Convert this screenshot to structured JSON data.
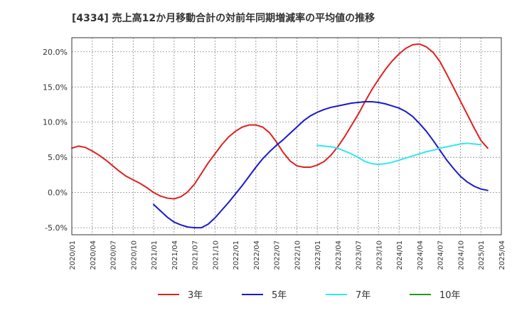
{
  "chart_data": {
    "type": "line",
    "title": "[4334]  売上高12か月移動合計の対前年同期増減率の平均値の推移",
    "xlabel": "",
    "ylabel": "",
    "ylim": [
      -6.0,
      22.0
    ],
    "y_ticks": [
      "-5.0%",
      "0.0%",
      "5.0%",
      "10.0%",
      "15.0%",
      "20.0%"
    ],
    "x_ticks": [
      "2020/01",
      "2020/04",
      "2020/07",
      "2020/10",
      "2021/01",
      "2021/04",
      "2021/07",
      "2021/10",
      "2022/01",
      "2022/04",
      "2022/07",
      "2022/10",
      "2023/01",
      "2023/04",
      "2023/07",
      "2023/10",
      "2024/01",
      "2024/04",
      "2024/07",
      "2024/10",
      "2025/01",
      "2025/04"
    ],
    "grid": true,
    "legend_position": "bottom",
    "series": [
      {
        "name": "3年",
        "color": "#dd2222",
        "start": "2020/01",
        "values": [
          6.3,
          6.6,
          6.4,
          5.9,
          5.3,
          4.6,
          3.8,
          3.0,
          2.3,
          1.8,
          1.3,
          0.7,
          0.0,
          -0.5,
          -0.8,
          -0.9,
          -0.6,
          0.1,
          1.2,
          2.7,
          4.2,
          5.5,
          6.8,
          7.9,
          8.7,
          9.3,
          9.6,
          9.6,
          9.3,
          8.5,
          7.2,
          5.7,
          4.5,
          3.8,
          3.6,
          3.6,
          3.9,
          4.4,
          5.3,
          6.5,
          7.9,
          9.5,
          11.1,
          12.9,
          14.6,
          16.1,
          17.5,
          18.7,
          19.7,
          20.5,
          21.0,
          21.1,
          20.7,
          19.9,
          18.6,
          16.8,
          14.9,
          13.0,
          11.1,
          9.2,
          7.4,
          6.3
        ]
      },
      {
        "name": "5年",
        "color": "#1a1acc",
        "start": "2021/01",
        "values": [
          -1.7,
          -2.6,
          -3.5,
          -4.2,
          -4.6,
          -4.9,
          -5.0,
          -5.0,
          -4.5,
          -3.6,
          -2.5,
          -1.4,
          -0.2,
          1.0,
          2.3,
          3.6,
          4.8,
          5.8,
          6.7,
          7.5,
          8.4,
          9.3,
          10.2,
          10.9,
          11.4,
          11.8,
          12.1,
          12.3,
          12.5,
          12.7,
          12.8,
          12.9,
          12.9,
          12.8,
          12.6,
          12.3,
          12.0,
          11.5,
          10.8,
          9.8,
          8.7,
          7.4,
          6.0,
          4.6,
          3.4,
          2.3,
          1.5,
          0.9,
          0.5,
          0.3
        ]
      },
      {
        "name": "7年",
        "color": "#33e8f0",
        "start": "2023/01",
        "values": [
          6.7,
          6.6,
          6.5,
          6.3,
          5.9,
          5.5,
          5.0,
          4.4,
          4.1,
          4.0,
          4.1,
          4.3,
          4.6,
          4.9,
          5.2,
          5.5,
          5.8,
          6.0,
          6.3,
          6.5,
          6.7,
          6.9,
          7.0,
          6.9,
          6.8
        ]
      },
      {
        "name": "10年",
        "color": "#229922",
        "start": "2023/01",
        "values": []
      }
    ]
  }
}
